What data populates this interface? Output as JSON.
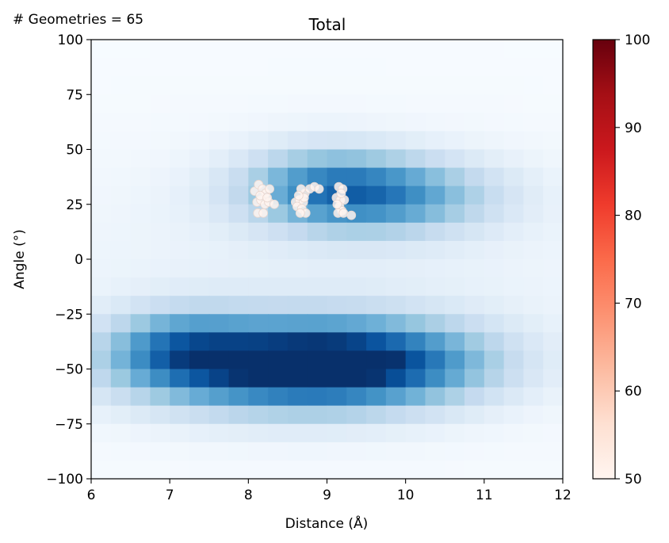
{
  "annotation": "# Geometries = 65",
  "chart_data": {
    "type": "heatmap",
    "title": "Total",
    "xlabel": "Distance (Å)",
    "ylabel": "Angle (°)",
    "xlim": [
      6,
      12
    ],
    "ylim": [
      -100,
      100
    ],
    "xticks": [
      "6",
      "7",
      "8",
      "9",
      "10",
      "11",
      "12"
    ],
    "yticks": [
      "100",
      "75",
      "50",
      "25",
      "0",
      "−25",
      "−50",
      "−75",
      "−100"
    ],
    "heatmap_colormap": "Blues",
    "heatmap_blobs": [
      {
        "x": 8.5,
        "y": -48,
        "sx": 1.35,
        "sy": 14,
        "amp": 1.0
      },
      {
        "x": 9.8,
        "y": -47,
        "sx": 1.0,
        "sy": 13,
        "amp": 0.35
      },
      {
        "x": 7.1,
        "y": -40,
        "sx": 0.6,
        "sy": 12,
        "amp": 0.35
      },
      {
        "x": 9.6,
        "y": 29,
        "sx": 1.0,
        "sy": 12,
        "amp": 0.62
      },
      {
        "x": 8.9,
        "y": 36,
        "sx": 0.7,
        "sy": 12,
        "amp": 0.25
      },
      {
        "x": 9.0,
        "y": -10,
        "sx": 3.0,
        "sy": 45,
        "amp": 0.08
      }
    ],
    "scatter_colormap": "Reds",
    "scatter_points": [
      [
        8.08,
        31
      ],
      [
        8.13,
        34
      ],
      [
        8.18,
        32
      ],
      [
        8.22,
        30
      ],
      [
        8.27,
        32
      ],
      [
        8.11,
        26
      ],
      [
        8.16,
        27
      ],
      [
        8.21,
        25
      ],
      [
        8.26,
        26
      ],
      [
        8.33,
        25
      ],
      [
        8.12,
        21
      ],
      [
        8.19,
        21
      ],
      [
        8.15,
        29
      ],
      [
        8.24,
        28
      ],
      [
        8.6,
        26
      ],
      [
        8.65,
        27
      ],
      [
        8.7,
        26
      ],
      [
        8.62,
        24
      ],
      [
        8.68,
        23
      ],
      [
        8.73,
        21
      ],
      [
        8.66,
        21
      ],
      [
        8.72,
        30
      ],
      [
        8.67,
        32
      ],
      [
        8.78,
        32
      ],
      [
        8.84,
        33
      ],
      [
        8.9,
        32
      ],
      [
        8.71,
        28
      ],
      [
        8.64,
        29
      ],
      [
        9.15,
        33
      ],
      [
        9.2,
        32
      ],
      [
        9.12,
        28
      ],
      [
        9.17,
        27
      ],
      [
        9.22,
        27
      ],
      [
        9.16,
        24
      ],
      [
        9.19,
        22
      ],
      [
        9.14,
        21
      ],
      [
        9.21,
        21
      ],
      [
        9.31,
        20
      ],
      [
        9.18,
        30
      ],
      [
        9.13,
        25
      ]
    ],
    "colorbar": {
      "min": 50,
      "max": 100,
      "ticks": [
        "50",
        "60",
        "70",
        "80",
        "90",
        "100"
      ]
    }
  }
}
